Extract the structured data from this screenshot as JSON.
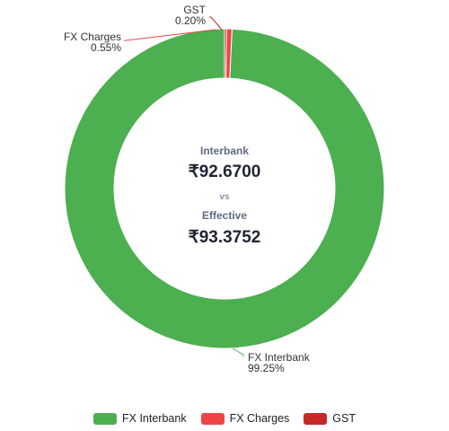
{
  "chart_data": {
    "type": "pie",
    "variant": "donut",
    "categories": [
      "FX Interbank",
      "FX Charges",
      "GST"
    ],
    "values": [
      99.25,
      0.55,
      0.2
    ],
    "value_labels": [
      "99.25%",
      "0.55%",
      "0.20%"
    ],
    "colors": [
      "#4caf50",
      "#ef4444",
      "#c62828"
    ],
    "legend_position": "bottom",
    "center": {
      "line1_label": "Interbank",
      "line1_value": "₹92.6700",
      "separator": "vs",
      "line2_label": "Effective",
      "line2_value": "₹93.3752"
    }
  }
}
